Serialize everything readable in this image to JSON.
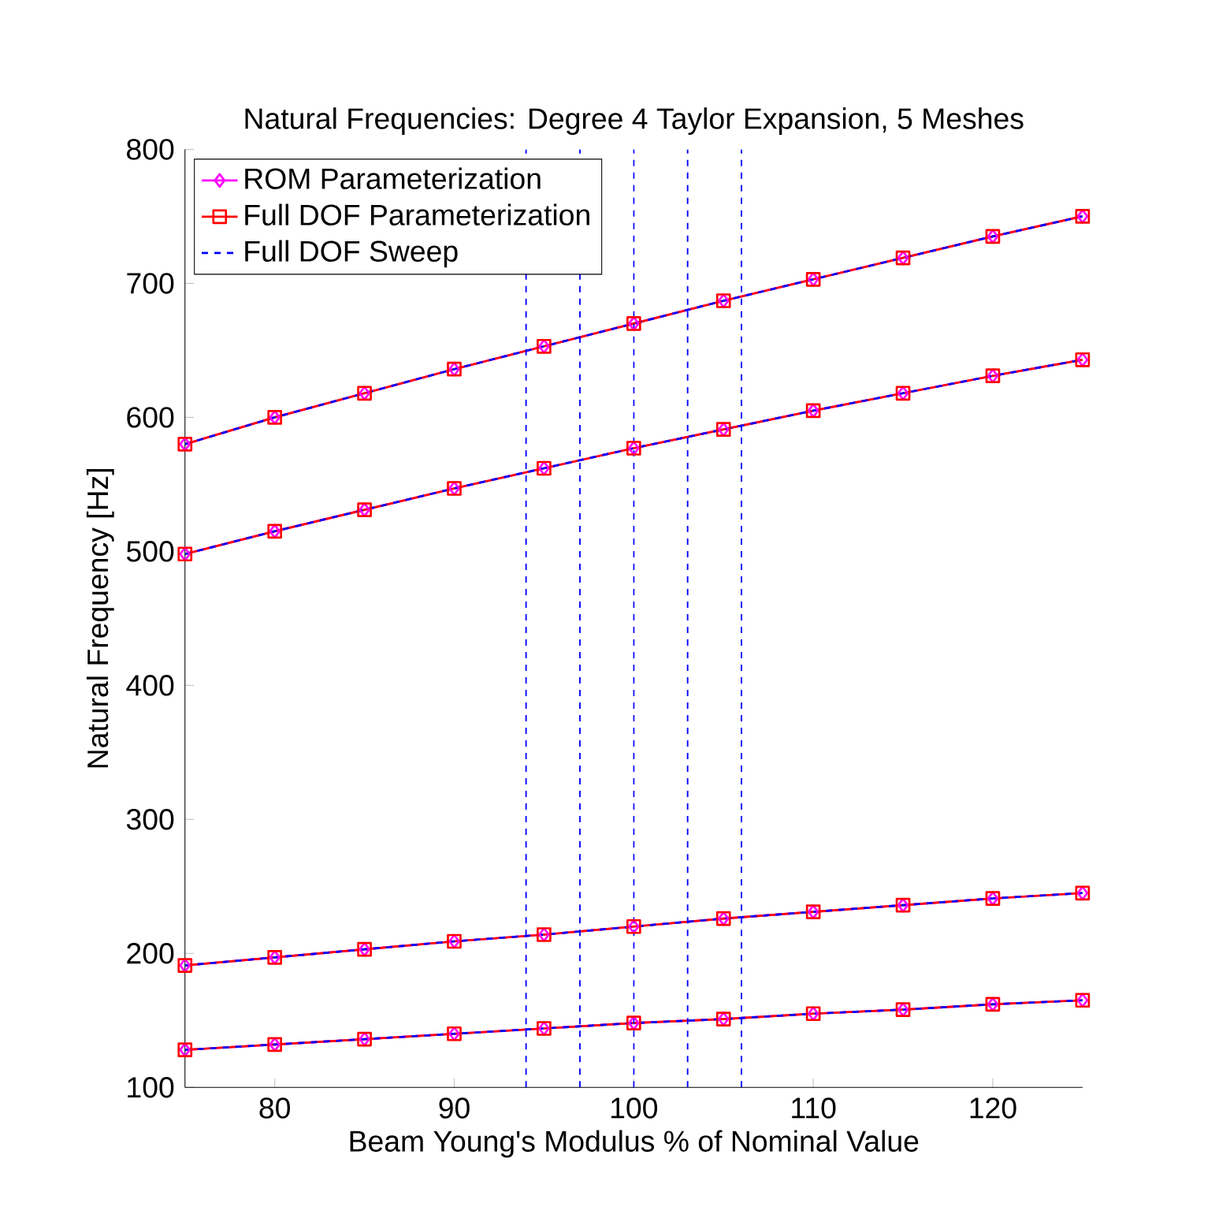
{
  "chart_data": {
    "type": "line",
    "title": "Natural Frequencies: Degree 4 Taylor Expansion, 5 Meshes",
    "xlabel": "Beam Young's Modulus % of Nominal Value",
    "ylabel": "Natural Frequency [Hz]",
    "x": [
      75,
      80,
      85,
      90,
      95,
      100,
      105,
      110,
      115,
      120,
      125
    ],
    "xlim": [
      75,
      125
    ],
    "xticks": [
      80,
      90,
      100,
      110,
      120
    ],
    "ylim": [
      100,
      800
    ],
    "yticks": [
      100,
      200,
      300,
      400,
      500,
      600,
      700,
      800
    ],
    "grid": false,
    "legend": "top left",
    "series": [
      {
        "name": "ROM Parameterization",
        "color": "#ff00ff",
        "marker": "diamond",
        "line_style": "solid",
        "values": [
          128,
          132,
          136,
          140,
          144,
          148,
          151,
          155,
          158,
          162,
          165
        ]
      },
      {
        "name": "Full DOF Parameterization",
        "color": "#ff0000",
        "marker": "square",
        "line_style": "solid",
        "values": [
          128,
          132,
          136,
          140,
          144,
          148,
          151,
          155,
          158,
          162,
          165
        ]
      },
      {
        "name": "Full DOF Sweep",
        "color": "#0000ff",
        "marker": "none",
        "line_style": "dashed",
        "values": [
          128,
          132,
          136,
          140,
          144,
          148,
          151,
          155,
          158,
          162,
          165
        ]
      },
      {
        "color": "#ff00ff",
        "marker": "diamond",
        "line_style": "solid",
        "values": [
          191,
          197,
          203,
          209,
          214,
          220,
          226,
          231,
          236,
          241,
          245
        ]
      },
      {
        "color": "#ff0000",
        "marker": "square",
        "line_style": "solid",
        "values": [
          191,
          197,
          203,
          209,
          214,
          220,
          226,
          231,
          236,
          241,
          245
        ]
      },
      {
        "color": "#0000ff",
        "marker": "none",
        "line_style": "dashed",
        "values": [
          191,
          197,
          203,
          209,
          214,
          220,
          226,
          231,
          236,
          241,
          245
        ]
      },
      {
        "color": "#ff00ff",
        "marker": "diamond",
        "line_style": "solid",
        "values": [
          498,
          515,
          531,
          547,
          562,
          577,
          591,
          605,
          618,
          631,
          643
        ]
      },
      {
        "color": "#ff0000",
        "marker": "square",
        "line_style": "solid",
        "values": [
          498,
          515,
          531,
          547,
          562,
          577,
          591,
          605,
          618,
          631,
          643
        ]
      },
      {
        "color": "#0000ff",
        "marker": "none",
        "line_style": "dashed",
        "values": [
          498,
          515,
          531,
          547,
          562,
          577,
          591,
          605,
          618,
          631,
          643
        ]
      },
      {
        "color": "#ff00ff",
        "marker": "diamond",
        "line_style": "solid",
        "values": [
          580,
          600,
          618,
          636,
          653,
          670,
          687,
          703,
          719,
          735,
          750
        ]
      },
      {
        "color": "#ff0000",
        "marker": "square",
        "line_style": "solid",
        "values": [
          580,
          600,
          618,
          636,
          653,
          670,
          687,
          703,
          719,
          735,
          750
        ]
      },
      {
        "color": "#0000ff",
        "marker": "none",
        "line_style": "dashed",
        "values": [
          580,
          600,
          618,
          636,
          653,
          670,
          687,
          703,
          719,
          735,
          750
        ]
      }
    ],
    "ref_lines": [
      {
        "axis": "x",
        "value": 94,
        "color": "#0000ff",
        "line_style": "dashed"
      },
      {
        "axis": "x",
        "value": 97,
        "color": "#0000ff",
        "line_style": "dashed"
      },
      {
        "axis": "x",
        "value": 100,
        "color": "#0000ff",
        "line_style": "dashed"
      },
      {
        "axis": "x",
        "value": 103,
        "color": "#0000ff",
        "line_style": "dashed"
      },
      {
        "axis": "x",
        "value": 106,
        "color": "#0000ff",
        "line_style": "dashed"
      }
    ]
  }
}
